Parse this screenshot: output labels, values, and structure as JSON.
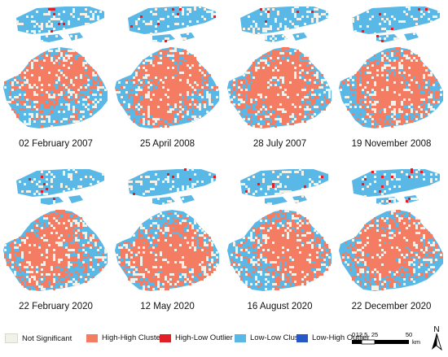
{
  "panels": [
    {
      "label": "02 February 2007",
      "high_share": 0.45
    },
    {
      "label": "25 April 2008",
      "high_share": 0.55
    },
    {
      "label": "28 July 2007",
      "high_share": 0.58
    },
    {
      "label": "19 November 2008",
      "high_share": 0.52
    },
    {
      "label": "22 February 2020",
      "high_share": 0.48
    },
    {
      "label": "12 May 2020",
      "high_share": 0.6
    },
    {
      "label": "16 August 2020",
      "high_share": 0.62
    },
    {
      "label": "22 December 2020",
      "high_share": 0.5
    }
  ],
  "legend": [
    {
      "label": "Not Significant",
      "color": "#f2f2ea"
    },
    {
      "label": "High-High Cluster",
      "color": "#f47c62"
    },
    {
      "label": "High-Low Outlier",
      "color": "#e01f26"
    },
    {
      "label": "Low-Low Cluster",
      "color": "#5ab8e6"
    },
    {
      "label": "Low-High Outlier",
      "color": "#2857c8"
    }
  ],
  "scale_bar": {
    "ticks": [
      "0",
      "12.5",
      "25",
      "50"
    ],
    "unit": "km"
  },
  "north_arrow": {
    "label": "N",
    "icon": "north-arrow-icon"
  }
}
